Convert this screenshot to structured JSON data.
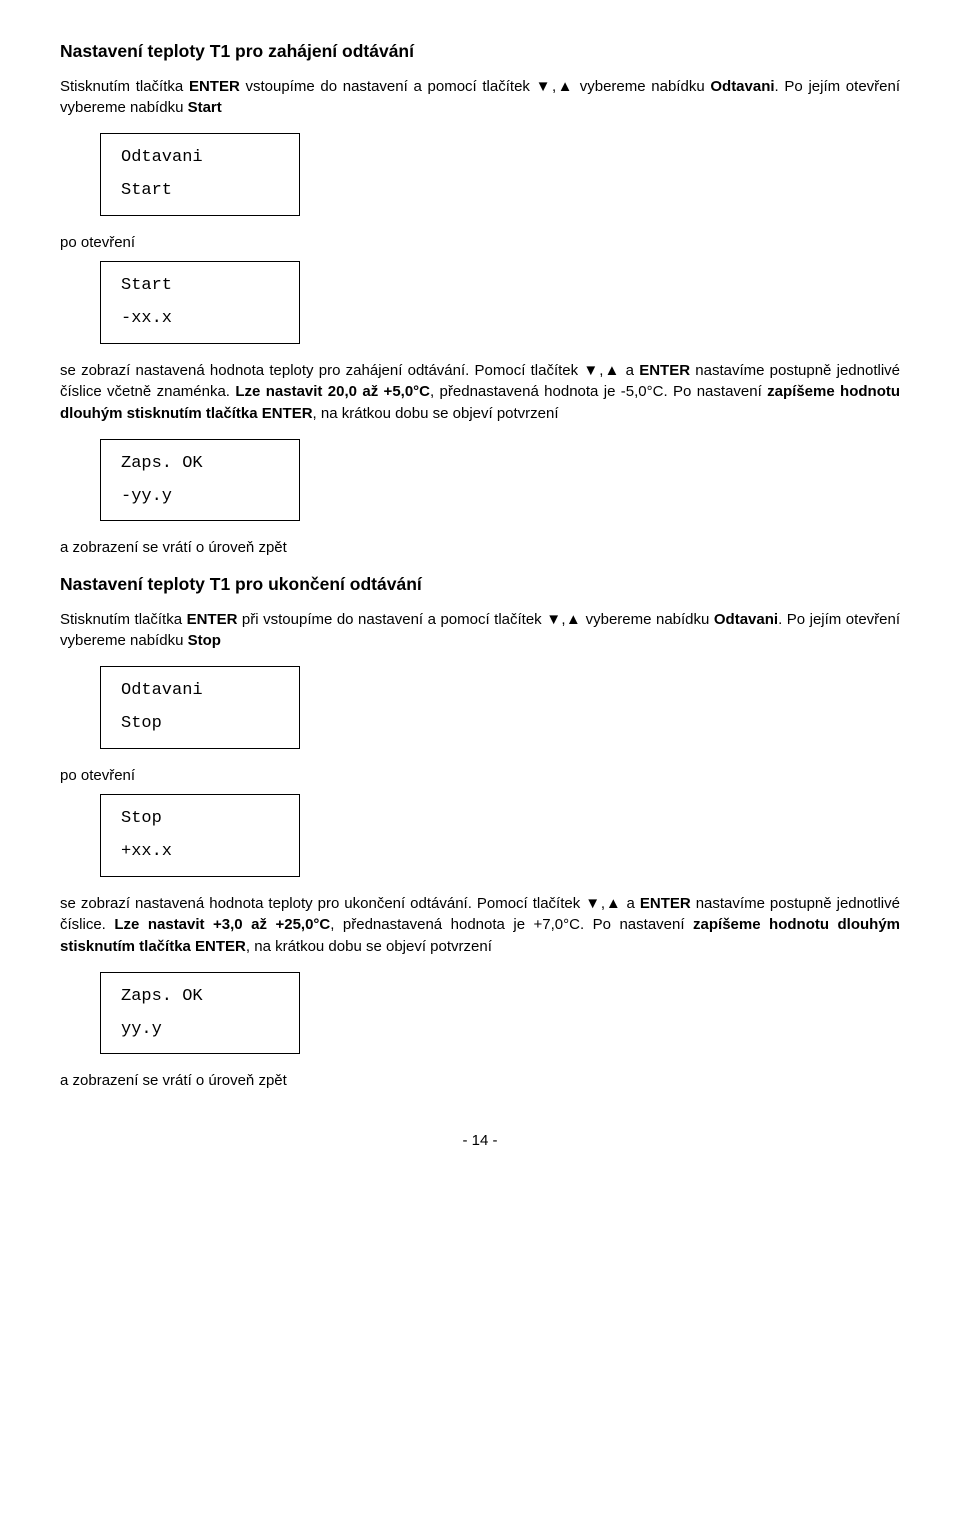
{
  "section1": {
    "title": "Nastavení teploty T1 pro zahájení odtávání",
    "para1_a": "Stisknutím tlačítka ",
    "para1_enter": "ENTER",
    "para1_b": " vstoupíme do nastavení a pomocí tlačítek ▼,▲ vybereme nabídku ",
    "para1_odt": "Odtavani",
    "para1_c": ". Po jejím otevření vybereme nabídku ",
    "para1_start": "Start",
    "lcd1_l1": "Odtavani",
    "lcd1_l2": "Start",
    "po_otevreni": "po otevření",
    "lcd2_l1": "Start",
    "lcd2_l2": " -xx.x",
    "para2_a": "se zobrazí nastavená hodnota teploty pro zahájení odtávání. Pomocí tlačítek ▼,▲ a ",
    "para2_enter": "ENTER",
    "para2_b": " nastavíme postupně jednotlivé číslice včetně znaménka. ",
    "para2_lze": "Lze nastavit 20,0 až +5,0°C",
    "para2_c": ", přednastavená hodnota je -5,0°C. Po nastavení ",
    "para2_bold": "zapíšeme hodnotu dlouhým stisknutím tlačítka ENTER",
    "para2_d": ", na krátkou dobu se objeví potvrzení",
    "lcd3_l1": "Zaps. OK",
    "lcd3_l2": " -yy.y",
    "back1": "a zobrazení se vrátí o úroveň zpět"
  },
  "section2": {
    "title": "Nastavení teploty T1 pro ukončení odtávání",
    "para1_a": "Stisknutím tlačítka ",
    "para1_enter": "ENTER",
    "para1_b": " při vstoupíme do nastavení a pomocí tlačítek ▼,▲ vybereme nabídku ",
    "para1_odt": "Odtavani",
    "para1_c": ". Po jejím otevření vybereme nabídku ",
    "para1_stop": "Stop",
    "lcd4_l1": "Odtavani",
    "lcd4_l2": "Stop",
    "po_otevreni": "po otevření",
    "lcd5_l1": "Stop",
    "lcd5_l2": " +xx.x",
    "para2_a": "se zobrazí nastavená hodnota teploty pro ukončení odtávání. Pomocí tlačítek ▼,▲ a ",
    "para2_enter": "ENTER",
    "para2_b": " nastavíme postupně jednotlivé číslice. ",
    "para2_lze": "Lze nastavit +3,0 až +25,0°C",
    "para2_c": ", přednastavená hodnota je +7,0°C. Po nastavení ",
    "para2_bold": "zapíšeme hodnotu dlouhým stisknutím tlačítka ENTER",
    "para2_d": ", na krátkou dobu se objeví potvrzení",
    "lcd6_l1": "Zaps. OK",
    "lcd6_l2": " yy.y",
    "back2": "a zobrazení se vrátí o úroveň zpět"
  },
  "pagefoot": "- 14 -"
}
